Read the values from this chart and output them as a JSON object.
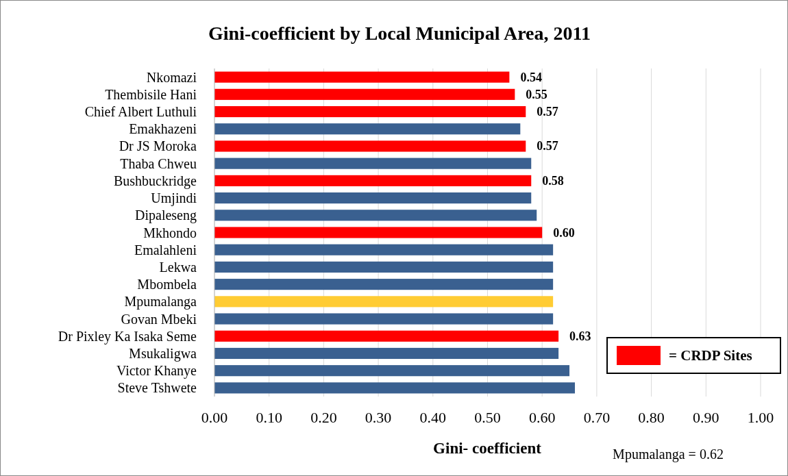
{
  "chart_data": {
    "type": "bar",
    "orientation": "horizontal",
    "title": "Gini-coefficient by Local Municipal Area, 2011",
    "xlabel": "Gini- coefficient",
    "categories": [
      "Nkomazi",
      "Thembisile Hani",
      "Chief Albert Luthuli",
      "Emakhazeni",
      "Dr JS Moroka",
      "Thaba Chweu",
      "Bushbuckridge",
      "Umjindi",
      "Dipaleseng",
      "Mkhondo",
      "Emalahleni",
      "Lekwa",
      "Mbombela",
      "Mpumalanga",
      "Govan Mbeki",
      "Dr Pixley Ka Isaka Seme",
      "Msukaligwa",
      "Victor Khanye",
      "Steve Tshwete"
    ],
    "series": [
      {
        "name": "= CRDP Sites",
        "color": "#ff0000",
        "values": [
          0.54,
          0.55,
          0.57,
          null,
          0.57,
          null,
          0.58,
          null,
          null,
          0.6,
          null,
          null,
          null,
          null,
          null,
          0.63,
          null,
          null,
          null
        ],
        "value_labels": [
          "0.54",
          "0.55",
          "0.57",
          null,
          "0.57",
          null,
          "0.58",
          null,
          null,
          "0.60",
          null,
          null,
          null,
          null,
          null,
          "0.63",
          null,
          null,
          null
        ]
      },
      {
        "color": "#3a6090",
        "values": [
          null,
          null,
          null,
          0.56,
          null,
          0.58,
          null,
          0.58,
          0.59,
          null,
          0.62,
          0.62,
          0.62,
          null,
          0.62,
          null,
          0.63,
          0.65,
          0.66
        ]
      },
      {
        "color": "#ffcc33",
        "values": [
          null,
          null,
          null,
          null,
          null,
          null,
          null,
          null,
          null,
          null,
          null,
          null,
          null,
          0.62,
          null,
          null,
          null,
          null,
          null
        ]
      }
    ],
    "xlim": [
      0,
      1
    ],
    "xticks": [
      {
        "value": 0,
        "label": "0.00"
      },
      {
        "value": 0.1,
        "label": "0.10"
      },
      {
        "value": 0.2,
        "label": "0.20"
      },
      {
        "value": 0.3,
        "label": "0.30"
      },
      {
        "value": 0.4,
        "label": "0.40"
      },
      {
        "value": 0.5,
        "label": "0.50"
      },
      {
        "value": 0.6,
        "label": "0.60"
      },
      {
        "value": 0.7,
        "label": "0.70"
      },
      {
        "value": 0.8,
        "label": "0.80"
      },
      {
        "value": 0.9,
        "label": "0.90"
      },
      {
        "value": 1,
        "label": "1.00"
      }
    ],
    "grid": "x",
    "legend": "bottom right",
    "annotations": [
      "Mpumalanga = 0.62"
    ]
  }
}
